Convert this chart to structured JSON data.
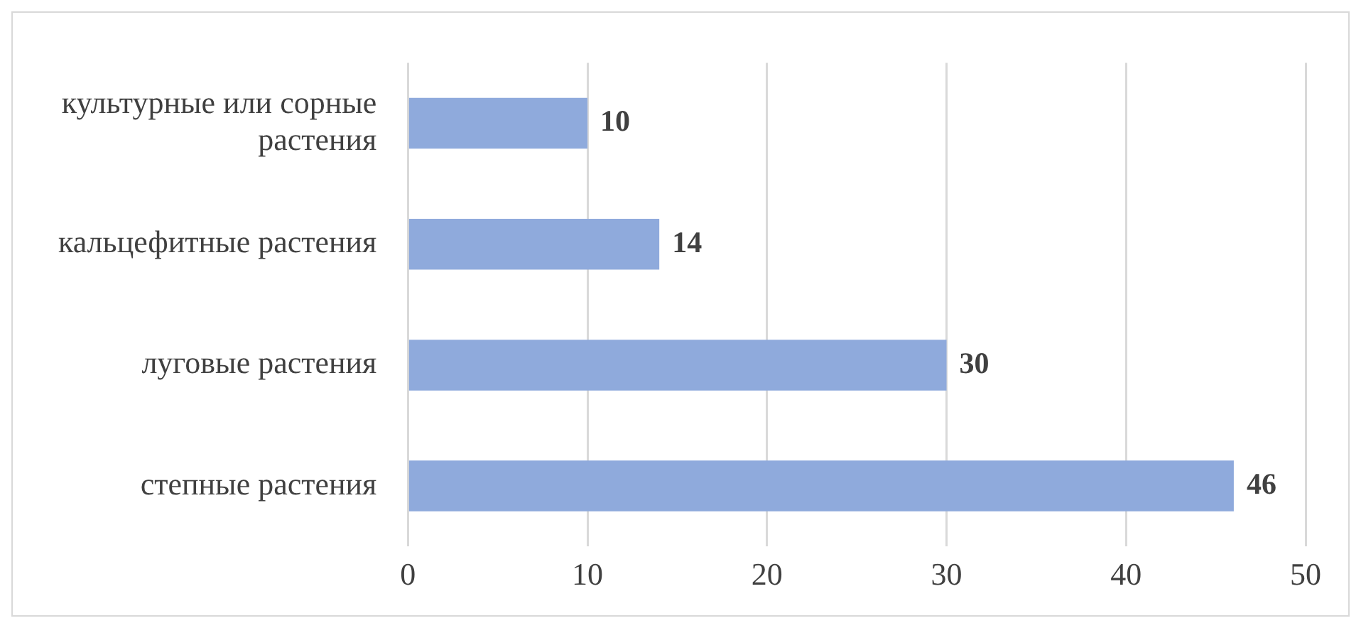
{
  "chart_data": {
    "type": "bar",
    "orientation": "horizontal",
    "categories": [
      "культурные или сорные растения",
      "кальцефитные растения",
      "луговые растения",
      "степные растения"
    ],
    "values": [
      10,
      14,
      30,
      46
    ],
    "color": "#8faadc",
    "xlim": [
      0,
      50
    ],
    "xticks": [
      0,
      10,
      20,
      30,
      40,
      50
    ],
    "grid": "x",
    "data_labels": true,
    "legend": false
  }
}
